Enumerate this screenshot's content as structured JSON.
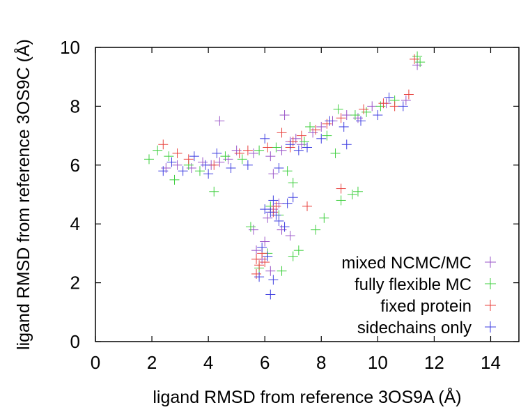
{
  "chart_data": {
    "type": "scatter",
    "title": "",
    "xlabel": "ligand RMSD from reference 3OS9A (Å)",
    "ylabel": "ligand RMSD from reference 3OS9C (Å)",
    "xlim": [
      0,
      15
    ],
    "ylim": [
      0,
      10
    ],
    "x_ticks": [
      "0",
      "2",
      "4",
      "6",
      "8",
      "10",
      "12",
      "14"
    ],
    "y_ticks": [
      "0",
      "2",
      "4",
      "6",
      "8",
      "10"
    ],
    "grid": false,
    "legend_position": "bottom-right",
    "marker": "plus",
    "series": [
      {
        "name": "mixed NCMC/MC",
        "color": "#9a55c8",
        "points": [
          [
            2.5,
            5.9
          ],
          [
            2.9,
            6.0
          ],
          [
            3.4,
            5.9
          ],
          [
            3.8,
            6.1
          ],
          [
            4.1,
            6.0
          ],
          [
            4.4,
            6.1
          ],
          [
            4.7,
            6.2
          ],
          [
            5.0,
            6.5
          ],
          [
            5.6,
            6.4
          ],
          [
            6.2,
            6.3
          ],
          [
            6.6,
            6.5
          ],
          [
            6.9,
            6.8
          ],
          [
            7.1,
            6.9
          ],
          [
            7.3,
            6.7
          ],
          [
            7.7,
            7.1
          ],
          [
            8.0,
            7.3
          ],
          [
            8.4,
            7.5
          ],
          [
            8.9,
            7.7
          ],
          [
            9.3,
            7.6
          ],
          [
            9.8,
            8.0
          ],
          [
            10.3,
            8.1
          ],
          [
            11.0,
            8.2
          ],
          [
            11.4,
            9.4
          ],
          [
            6.1,
            4.2
          ],
          [
            6.3,
            4.5
          ],
          [
            6.5,
            4.7
          ],
          [
            6.0,
            3.4
          ],
          [
            5.9,
            2.8
          ],
          [
            6.2,
            2.4
          ],
          [
            5.7,
            3.1
          ],
          [
            6.6,
            3.8
          ],
          [
            6.9,
            3.6
          ],
          [
            6.7,
            7.7
          ],
          [
            4.4,
            7.5
          ],
          [
            6.3,
            5.7
          ],
          [
            5.6,
            3.8
          ]
        ]
      },
      {
        "name": "fully flexible MC",
        "color": "#3ecf3e",
        "points": [
          [
            1.9,
            6.2
          ],
          [
            2.2,
            6.5
          ],
          [
            2.6,
            6.3
          ],
          [
            2.8,
            5.5
          ],
          [
            3.3,
            6.0
          ],
          [
            3.7,
            5.8
          ],
          [
            4.2,
            5.1
          ],
          [
            4.6,
            6.3
          ],
          [
            5.2,
            6.2
          ],
          [
            5.8,
            6.5
          ],
          [
            6.4,
            6.6
          ],
          [
            6.8,
            5.8
          ],
          [
            7.0,
            5.4
          ],
          [
            7.4,
            6.8
          ],
          [
            7.6,
            7.3
          ],
          [
            8.2,
            7.0
          ],
          [
            8.6,
            7.9
          ],
          [
            9.2,
            7.7
          ],
          [
            9.6,
            7.8
          ],
          [
            10.1,
            8.0
          ],
          [
            10.6,
            8.2
          ],
          [
            11.4,
            9.7
          ],
          [
            11.5,
            9.5
          ],
          [
            6.2,
            4.6
          ],
          [
            6.5,
            4.3
          ],
          [
            6.1,
            3.0
          ],
          [
            6.6,
            2.4
          ],
          [
            5.8,
            2.5
          ],
          [
            7.2,
            3.1
          ],
          [
            7.8,
            3.8
          ],
          [
            8.1,
            4.2
          ],
          [
            8.7,
            4.8
          ],
          [
            9.1,
            5.0
          ],
          [
            9.3,
            5.1
          ],
          [
            8.5,
            6.4
          ],
          [
            7.0,
            2.9
          ],
          [
            5.5,
            3.9
          ]
        ]
      },
      {
        "name": "fixed protein",
        "color": "#e8413c",
        "points": [
          [
            2.4,
            6.7
          ],
          [
            2.9,
            6.4
          ],
          [
            3.3,
            6.2
          ],
          [
            4.2,
            6.0
          ],
          [
            5.4,
            6.5
          ],
          [
            6.1,
            6.6
          ],
          [
            6.6,
            7.1
          ],
          [
            7.0,
            6.8
          ],
          [
            7.3,
            7.0
          ],
          [
            7.8,
            7.2
          ],
          [
            8.2,
            7.4
          ],
          [
            8.7,
            7.6
          ],
          [
            9.5,
            7.9
          ],
          [
            10.2,
            8.1
          ],
          [
            10.6,
            8.0
          ],
          [
            11.1,
            8.4
          ],
          [
            11.3,
            9.6
          ],
          [
            5.7,
            2.8
          ],
          [
            5.8,
            2.6
          ],
          [
            5.9,
            3.0
          ],
          [
            5.7,
            2.3
          ],
          [
            6.0,
            2.7
          ],
          [
            6.3,
            4.4
          ],
          [
            6.4,
            4.6
          ],
          [
            8.7,
            5.2
          ],
          [
            7.5,
            4.6
          ],
          [
            6.9,
            6.6
          ],
          [
            5.1,
            6.4
          ]
        ]
      },
      {
        "name": "sidechains only",
        "color": "#3d3de0",
        "points": [
          [
            2.4,
            5.8
          ],
          [
            2.7,
            6.1
          ],
          [
            3.1,
            5.8
          ],
          [
            3.5,
            6.3
          ],
          [
            3.9,
            6.0
          ],
          [
            4.0,
            5.7
          ],
          [
            4.3,
            6.4
          ],
          [
            4.8,
            5.9
          ],
          [
            5.4,
            6.0
          ],
          [
            6.0,
            6.9
          ],
          [
            6.5,
            5.9
          ],
          [
            6.9,
            6.7
          ],
          [
            7.2,
            6.5
          ],
          [
            7.5,
            6.6
          ],
          [
            8.0,
            6.9
          ],
          [
            8.3,
            7.5
          ],
          [
            8.8,
            7.3
          ],
          [
            9.4,
            7.5
          ],
          [
            10.0,
            7.7
          ],
          [
            10.4,
            8.3
          ],
          [
            10.9,
            8.0
          ],
          [
            6.2,
            4.4
          ],
          [
            6.4,
            4.3
          ],
          [
            6.3,
            4.8
          ],
          [
            6.0,
            4.5
          ],
          [
            6.5,
            4.1
          ],
          [
            6.7,
            3.9
          ],
          [
            6.8,
            4.7
          ],
          [
            5.9,
            3.2
          ],
          [
            6.1,
            2.9
          ],
          [
            6.3,
            2.1
          ],
          [
            6.2,
            1.6
          ],
          [
            5.8,
            2.2
          ],
          [
            7.0,
            4.9
          ],
          [
            8.9,
            6.7
          ]
        ]
      }
    ]
  }
}
